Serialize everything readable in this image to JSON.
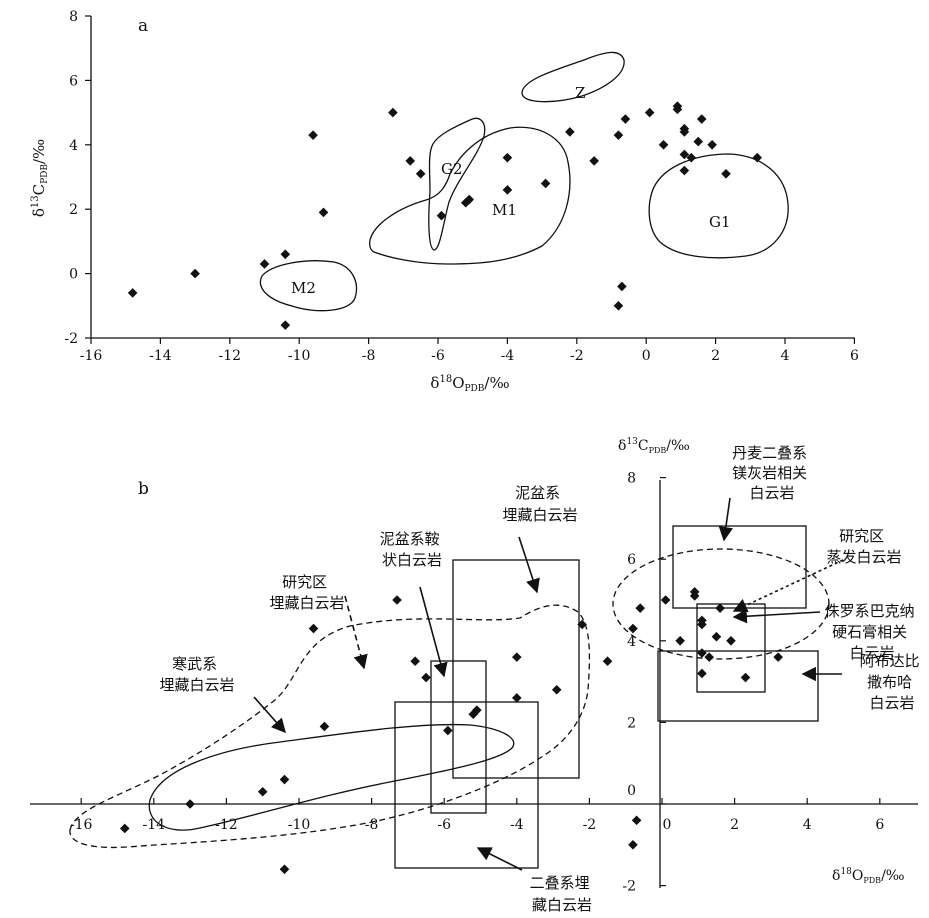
{
  "chart_data": [
    {
      "type": "scatter",
      "panel_label": "a",
      "xlabel": "δ18OPDB/‰",
      "ylabel": "δ13CPDB/‰",
      "xlim": [
        -16,
        6
      ],
      "ylim": [
        -2,
        8
      ],
      "x_ticks": [
        "-16",
        "-14",
        "-12",
        "-10",
        "-8",
        "-6",
        "-4",
        "-2",
        "0",
        "2",
        "4",
        "6"
      ],
      "y_ticks": [
        "-2",
        "0",
        "2",
        "4",
        "6",
        "8"
      ],
      "points": [
        {
          "x": -14.8,
          "y": -0.6
        },
        {
          "x": -13.0,
          "y": 0.0
        },
        {
          "x": -11.0,
          "y": 0.3
        },
        {
          "x": -10.4,
          "y": 0.6
        },
        {
          "x": -10.4,
          "y": -1.6
        },
        {
          "x": -9.6,
          "y": 4.3
        },
        {
          "x": -9.3,
          "y": 1.9
        },
        {
          "x": -7.3,
          "y": 5.0
        },
        {
          "x": -6.8,
          "y": 3.5
        },
        {
          "x": -6.5,
          "y": 3.1
        },
        {
          "x": -5.9,
          "y": 1.8
        },
        {
          "x": -5.2,
          "y": 2.2
        },
        {
          "x": -5.1,
          "y": 2.3
        },
        {
          "x": -4.0,
          "y": 3.6
        },
        {
          "x": -4.0,
          "y": 2.6
        },
        {
          "x": -2.9,
          "y": 2.8
        },
        {
          "x": -2.2,
          "y": 4.4
        },
        {
          "x": -1.5,
          "y": 3.5
        },
        {
          "x": -0.8,
          "y": 4.3
        },
        {
          "x": -0.6,
          "y": 4.8
        },
        {
          "x": -0.8,
          "y": -1.0
        },
        {
          "x": -0.7,
          "y": -0.4
        },
        {
          "x": 0.1,
          "y": 5.0
        },
        {
          "x": 0.5,
          "y": 4.0
        },
        {
          "x": 0.9,
          "y": 5.2
        },
        {
          "x": 0.9,
          "y": 5.1
        },
        {
          "x": 1.1,
          "y": 4.4
        },
        {
          "x": 1.1,
          "y": 4.5
        },
        {
          "x": 1.1,
          "y": 3.7
        },
        {
          "x": 1.1,
          "y": 3.2
        },
        {
          "x": 1.3,
          "y": 3.6
        },
        {
          "x": 1.5,
          "y": 4.1
        },
        {
          "x": 1.6,
          "y": 4.8
        },
        {
          "x": 1.9,
          "y": 4.0
        },
        {
          "x": 2.3,
          "y": 3.1
        },
        {
          "x": 3.2,
          "y": 3.6
        }
      ],
      "regions": [
        {
          "label": "Z"
        },
        {
          "label": "G2"
        },
        {
          "label": "M1"
        },
        {
          "label": "G1"
        },
        {
          "label": "M2"
        }
      ]
    },
    {
      "type": "scatter",
      "panel_label": "b",
      "xlabel": "δ18OPDB/‰",
      "ylabel": "δ13CPDB/‰",
      "xlim": [
        -16,
        6
      ],
      "ylim": [
        -2,
        8
      ],
      "x_ticks": [
        "-16",
        "-14",
        "-12",
        "-10",
        "-8",
        "-6",
        "-4",
        "-2",
        "0",
        "2",
        "4",
        "6"
      ],
      "y_ticks": [
        "-2",
        "0",
        "2",
        "4",
        "6",
        "8"
      ],
      "points": [
        {
          "x": -14.8,
          "y": -0.6
        },
        {
          "x": -13.0,
          "y": 0.0
        },
        {
          "x": -11.0,
          "y": 0.3
        },
        {
          "x": -10.4,
          "y": 0.6
        },
        {
          "x": -10.4,
          "y": -1.6
        },
        {
          "x": -9.6,
          "y": 4.3
        },
        {
          "x": -9.3,
          "y": 1.9
        },
        {
          "x": -7.3,
          "y": 5.0
        },
        {
          "x": -6.8,
          "y": 3.5
        },
        {
          "x": -6.5,
          "y": 3.1
        },
        {
          "x": -5.9,
          "y": 1.8
        },
        {
          "x": -5.2,
          "y": 2.2
        },
        {
          "x": -5.1,
          "y": 2.3
        },
        {
          "x": -4.0,
          "y": 3.6
        },
        {
          "x": -4.0,
          "y": 2.6
        },
        {
          "x": -2.9,
          "y": 2.8
        },
        {
          "x": -2.2,
          "y": 4.4
        },
        {
          "x": -1.5,
          "y": 3.5
        },
        {
          "x": -0.8,
          "y": 4.3
        },
        {
          "x": -0.6,
          "y": 4.8
        },
        {
          "x": -0.8,
          "y": -1.0
        },
        {
          "x": -0.7,
          "y": -0.4
        },
        {
          "x": 0.1,
          "y": 5.0
        },
        {
          "x": 0.5,
          "y": 4.0
        },
        {
          "x": 0.9,
          "y": 5.2
        },
        {
          "x": 0.9,
          "y": 5.1
        },
        {
          "x": 1.1,
          "y": 4.4
        },
        {
          "x": 1.1,
          "y": 4.5
        },
        {
          "x": 1.1,
          "y": 3.7
        },
        {
          "x": 1.1,
          "y": 3.2
        },
        {
          "x": 1.3,
          "y": 3.6
        },
        {
          "x": 1.5,
          "y": 4.1
        },
        {
          "x": 1.6,
          "y": 4.8
        },
        {
          "x": 1.9,
          "y": 4.0
        },
        {
          "x": 2.3,
          "y": 3.1
        },
        {
          "x": 3.2,
          "y": 3.6
        }
      ],
      "annotations": [
        "丹麦二叠系\n镁灰岩相关\n白云岩",
        "泥盆系\n埋藏白云岩",
        "研究区\n蒸发白云岩",
        "泥盆系鞍\n状白云岩",
        "研究区\n埋藏白云岩",
        "侏罗系巴克纳\n硬石膏相关\n白云岩",
        "寒武系\n埋藏白云岩",
        "阿布达比\n撒布哈\n白云岩",
        "二叠系埋\n藏白云岩"
      ]
    }
  ]
}
